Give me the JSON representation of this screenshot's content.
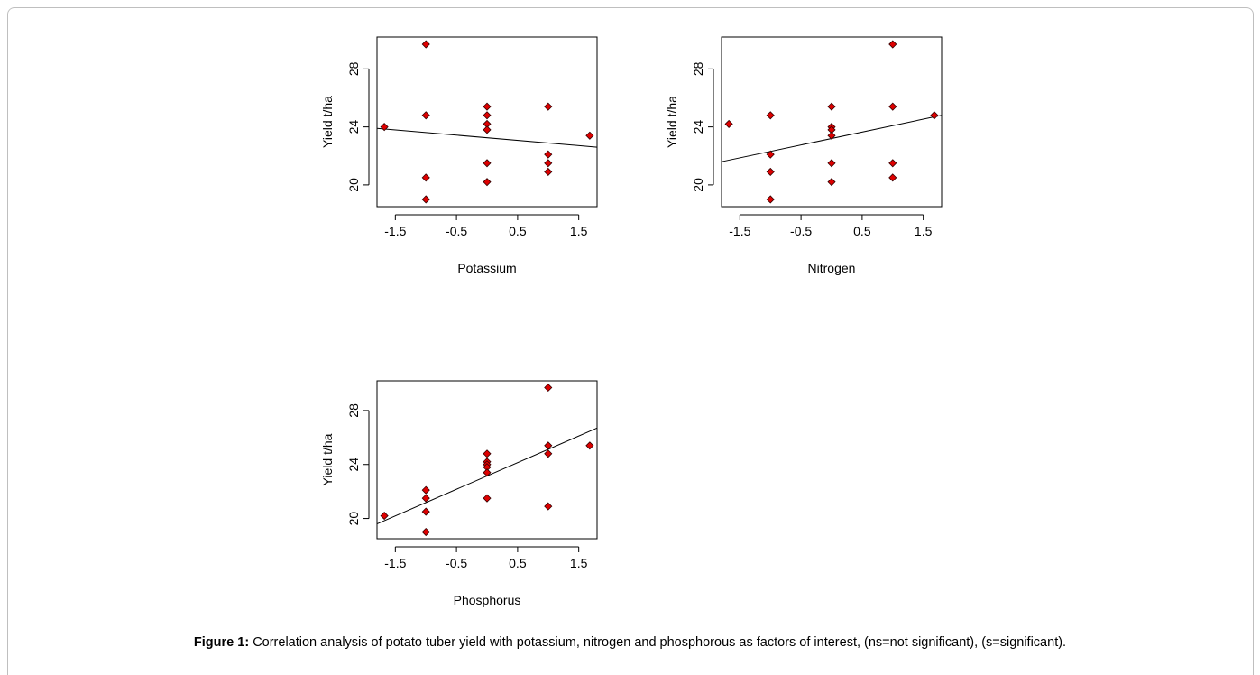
{
  "caption": {
    "label": "Figure 1:",
    "text": "Correlation analysis of potato tuber yield with potassium, nitrogen and phosphorous as factors of interest, (ns=not significant), (s=significant)."
  },
  "colors": {
    "point_fill": "#dd0000",
    "point_stroke": "#330000",
    "line": "#000000"
  },
  "chart_data": [
    {
      "type": "scatter",
      "xlabel": "Potassium",
      "ylabel": "Yield t/ha",
      "xlim": [
        -1.8,
        1.8
      ],
      "ylim": [
        18.5,
        30.2
      ],
      "xticks": [
        -1.5,
        -0.5,
        0.5,
        1.5
      ],
      "xtick_labels": [
        "-1.5",
        "-0.5",
        "0.5",
        "1.5"
      ],
      "yticks": [
        20,
        24,
        28
      ],
      "ytick_labels": [
        "20",
        "24",
        "28"
      ],
      "points": [
        [
          -1.68,
          24.0
        ],
        [
          -1.0,
          29.7
        ],
        [
          -1.0,
          24.8
        ],
        [
          -1.0,
          20.5
        ],
        [
          -1.0,
          19.0
        ],
        [
          0.0,
          25.4
        ],
        [
          0.0,
          24.8
        ],
        [
          0.0,
          24.2
        ],
        [
          0.0,
          23.8
        ],
        [
          0.0,
          21.5
        ],
        [
          0.0,
          20.2
        ],
        [
          1.0,
          25.4
        ],
        [
          1.0,
          22.1
        ],
        [
          1.0,
          21.5
        ],
        [
          1.0,
          20.9
        ],
        [
          1.68,
          23.4
        ]
      ],
      "trend_line": [
        [
          -1.8,
          23.9
        ],
        [
          1.8,
          22.6
        ]
      ]
    },
    {
      "type": "scatter",
      "xlabel": "Nitrogen",
      "ylabel": "Yield t/ha",
      "xlim": [
        -1.8,
        1.8
      ],
      "ylim": [
        18.5,
        30.2
      ],
      "xticks": [
        -1.5,
        -0.5,
        0.5,
        1.5
      ],
      "xtick_labels": [
        "-1.5",
        "-0.5",
        "0.5",
        "1.5"
      ],
      "yticks": [
        20,
        24,
        28
      ],
      "ytick_labels": [
        "20",
        "24",
        "28"
      ],
      "points": [
        [
          -1.68,
          24.2
        ],
        [
          -1.0,
          24.8
        ],
        [
          -1.0,
          22.1
        ],
        [
          -1.0,
          20.9
        ],
        [
          -1.0,
          19.0
        ],
        [
          0.0,
          25.4
        ],
        [
          0.0,
          24.0
        ],
        [
          0.0,
          23.8
        ],
        [
          0.0,
          23.4
        ],
        [
          0.0,
          21.5
        ],
        [
          0.0,
          20.2
        ],
        [
          1.0,
          29.7
        ],
        [
          1.0,
          25.4
        ],
        [
          1.0,
          21.5
        ],
        [
          1.0,
          20.5
        ],
        [
          1.68,
          24.8
        ]
      ],
      "trend_line": [
        [
          -1.8,
          21.6
        ],
        [
          1.8,
          24.8
        ]
      ]
    },
    {
      "type": "scatter",
      "xlabel": "Phosphorus",
      "ylabel": "Yield t/ha",
      "xlim": [
        -1.8,
        1.8
      ],
      "ylim": [
        18.5,
        30.2
      ],
      "xticks": [
        -1.5,
        -0.5,
        0.5,
        1.5
      ],
      "xtick_labels": [
        "-1.5",
        "-0.5",
        "0.5",
        "1.5"
      ],
      "yticks": [
        20,
        24,
        28
      ],
      "ytick_labels": [
        "20",
        "24",
        "28"
      ],
      "points": [
        [
          -1.68,
          20.2
        ],
        [
          -1.0,
          22.1
        ],
        [
          -1.0,
          21.5
        ],
        [
          -1.0,
          20.5
        ],
        [
          -1.0,
          19.0
        ],
        [
          0.0,
          24.8
        ],
        [
          0.0,
          24.2
        ],
        [
          0.0,
          24.0
        ],
        [
          0.0,
          23.8
        ],
        [
          0.0,
          23.4
        ],
        [
          0.0,
          21.5
        ],
        [
          1.0,
          29.7
        ],
        [
          1.0,
          25.4
        ],
        [
          1.0,
          24.8
        ],
        [
          1.0,
          20.9
        ],
        [
          1.68,
          25.4
        ]
      ],
      "trend_line": [
        [
          -1.8,
          19.6
        ],
        [
          1.8,
          26.7
        ]
      ]
    }
  ]
}
